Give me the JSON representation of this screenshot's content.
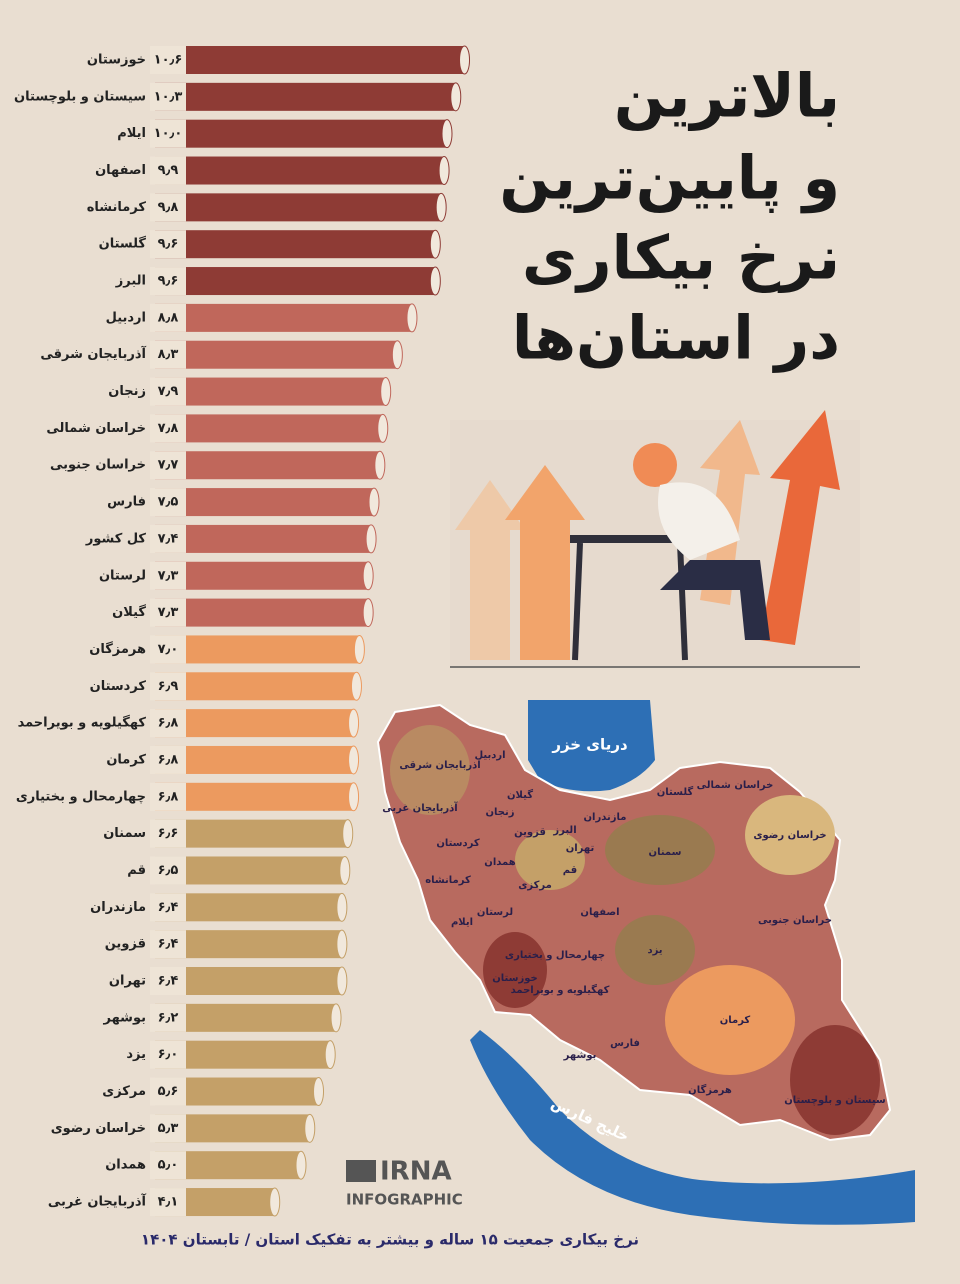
{
  "chart_data": {
    "type": "bar",
    "orientation": "horizontal",
    "title": [
      "بالاترین",
      "و پایین‌ترین",
      "نرخ بیکاری",
      "در استان‌ها"
    ],
    "footnote": "نرخ بیکاری جمعیت ۱۵ ساله و بیشتر به تفکیک استان / تابستان ۱۴۰۴",
    "categories": [
      "خوزستان",
      "سیستان و بلوچستان",
      "ایلام",
      "اصفهان",
      "کرمانشاه",
      "گلستان",
      "البرز",
      "اردبیل",
      "آذربایجان شرقی",
      "زنجان",
      "خراسان شمالی",
      "خراسان جنوبی",
      "فارس",
      "کل کشور",
      "لرستان",
      "گیلان",
      "هرمزگان",
      "کردستان",
      "کهگیلویه و بویراحمد",
      "کرمان",
      "چهارمحال و بختیاری",
      "سمنان",
      "قم",
      "مازندران",
      "قزوین",
      "تهران",
      "بوشهر",
      "یزد",
      "مرکزی",
      "خراسان رضوی",
      "همدان",
      "آذربایجان غربی"
    ],
    "values": [
      10.6,
      10.3,
      10.0,
      9.9,
      9.8,
      9.6,
      9.6,
      8.8,
      8.3,
      7.9,
      7.8,
      7.7,
      7.5,
      7.4,
      7.3,
      7.3,
      7.0,
      6.9,
      6.8,
      6.8,
      6.8,
      6.6,
      6.5,
      6.4,
      6.4,
      6.4,
      6.2,
      6.0,
      5.6,
      5.3,
      5.0,
      4.1
    ],
    "value_labels": [
      "۱۰٫۶",
      "۱۰٫۳",
      "۱۰٫۰",
      "۹٫۹",
      "۹٫۸",
      "۹٫۶",
      "۹٫۶",
      "۸٫۸",
      "۸٫۳",
      "۷٫۹",
      "۷٫۸",
      "۷٫۷",
      "۷٫۵",
      "۷٫۴",
      "۷٫۳",
      "۷٫۳",
      "۷٫۰",
      "۶٫۹",
      "۶٫۸",
      "۶٫۸",
      "۶٫۸",
      "۶٫۶",
      "۶٫۵",
      "۶٫۴",
      "۶٫۴",
      "۶٫۴",
      "۶٫۲",
      "۶٫۰",
      "۵٫۶",
      "۵٫۳",
      "۵٫۰",
      "۴٫۱"
    ],
    "colors": [
      "#8e3b35",
      "#8e3b35",
      "#8e3b35",
      "#8e3b35",
      "#8e3b35",
      "#8e3b35",
      "#8e3b35",
      "#c0675b",
      "#c0675b",
      "#c0675b",
      "#c0675b",
      "#c0675b",
      "#c0675b",
      "#c0675b",
      "#c0675b",
      "#c0675b",
      "#ec9a5f",
      "#ec9a5f",
      "#ec9a5f",
      "#ec9a5f",
      "#ec9a5f",
      "#c4a068",
      "#c4a068",
      "#c4a068",
      "#c4a068",
      "#c4a068",
      "#c4a068",
      "#c4a068",
      "#c4a068",
      "#c4a068",
      "#c4a068",
      "#c4a068"
    ]
  },
  "map": {
    "labels": [
      "دریای خزر",
      "اردبیل",
      "آذربایجان شرقی",
      "آذربایجان غربی",
      "گیلان",
      "زنجان",
      "مازندران",
      "البرز",
      "قزوین",
      "گلستان",
      "خراسان شمالی",
      "خراسان رضوی",
      "کردستان",
      "تهران",
      "قم",
      "سمنان",
      "همدان",
      "کرمانشاه",
      "مرکزی",
      "لرستان",
      "اصفهان",
      "ایلام",
      "خراسان جنوبی",
      "چهارمحال و بختیاری",
      "یزد",
      "خوزستان",
      "کهگیلویه و بویراحمد",
      "کرمان",
      "فارس",
      "بوشهر",
      "هرمزگان",
      "سیستان و بلوچستان",
      "خلیج فارس"
    ]
  },
  "logo": {
    "name": "IRNA",
    "subtitle": "INFOGRAPHIC"
  }
}
